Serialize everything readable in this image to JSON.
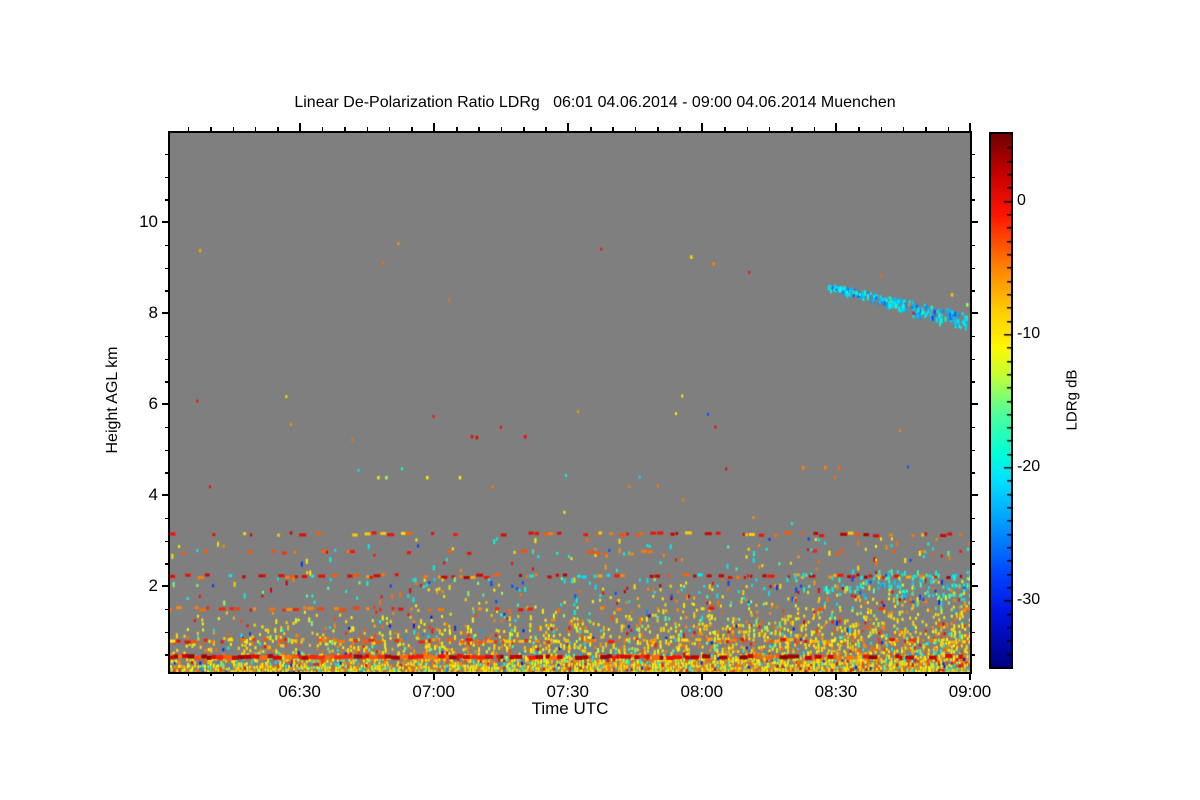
{
  "title": "Linear De-Polarization Ratio LDRg   06:01 04.06.2014 - 09:00 04.06.2014 Muenchen",
  "chart_data": {
    "type": "heatmap",
    "title": "Linear De-Polarization Ratio LDRg   06:01 04.06.2014 - 09:00 04.06.2014 Muenchen",
    "site": "Muenchen",
    "time_start": "06:01 04.06.2014",
    "time_end": "09:00 04.06.2014",
    "xlabel": "Time UTC",
    "ylabel": "Height AGL km",
    "colorbar_label": "LDRg dB",
    "background": "#7f7f7f",
    "x_range_minutes": [
      0,
      179
    ],
    "x_ticks": [
      {
        "label": "06:30",
        "minute": 29
      },
      {
        "label": "07:00",
        "minute": 59
      },
      {
        "label": "07:30",
        "minute": 89
      },
      {
        "label": "08:00",
        "minute": 119
      },
      {
        "label": "08:30",
        "minute": 149
      },
      {
        "label": "09:00",
        "minute": 179
      }
    ],
    "x_minor_step_min": 5,
    "y_range_km": [
      0.11,
      11.96
    ],
    "y_ticks": [
      2,
      4,
      6,
      8,
      10
    ],
    "y_minor_step_km": 0.5,
    "colorbar": {
      "max": 5,
      "min": -35,
      "ticks": [
        0,
        -10,
        -20,
        -30
      ],
      "minor_step_db": 1
    },
    "colormap_stops": [
      [
        5,
        "#730000"
      ],
      [
        2,
        "#c80000"
      ],
      [
        -1,
        "#ff1400"
      ],
      [
        -5,
        "#ff8200"
      ],
      [
        -8,
        "#ffc800"
      ],
      [
        -11,
        "#fff800"
      ],
      [
        -13,
        "#c8ff32"
      ],
      [
        -16,
        "#50ff9b"
      ],
      [
        -19,
        "#00ffd9"
      ],
      [
        -21,
        "#00e1ff"
      ],
      [
        -24,
        "#00a0ff"
      ],
      [
        -28,
        "#0046ff"
      ],
      [
        -31,
        "#0014e1"
      ],
      [
        -35,
        "#000082"
      ]
    ],
    "seed": 42,
    "features": [
      {
        "type": "region_surface",
        "h_top": 1.55,
        "base": 1.05,
        "falloff": 1.25,
        "t_floor": 0.45,
        "t_gain": 0.55,
        "top_growth": 0.45,
        "values": [
          [
            -10,
            0.4
          ],
          [
            -8,
            0.14
          ],
          [
            -5,
            0.16
          ],
          [
            -3,
            0.06
          ],
          [
            0,
            0.04
          ],
          [
            -13,
            0.08
          ],
          [
            -16,
            0.05
          ],
          [
            -20,
            0.05
          ],
          [
            -24,
            0.015
          ],
          [
            -30,
            0.015
          ]
        ]
      },
      {
        "type": "band",
        "h": 0.44,
        "thick": 4,
        "p_steps": [
          [
            0.4,
            0.96
          ],
          [
            0.62,
            0.5
          ],
          [
            1.01,
            0.35
          ]
        ],
        "values": [
          [
            1,
            0.35
          ],
          [
            3,
            0.3
          ],
          [
            -1,
            0.2
          ],
          [
            -4,
            0.15
          ]
        ]
      },
      {
        "type": "dash_row",
        "h": 0.83,
        "p_steps": [
          [
            0.45,
            0.5
          ],
          [
            1.01,
            0.22
          ]
        ],
        "values": [
          [
            -4,
            0.4
          ],
          [
            -1,
            0.3
          ],
          [
            -7,
            0.2
          ],
          [
            -10,
            0.1
          ]
        ]
      },
      {
        "type": "dash_row",
        "h": 1.53,
        "p_steps": [
          [
            0.35,
            0.38
          ],
          [
            1.01,
            0.12
          ]
        ],
        "values": [
          [
            -2,
            0.35
          ],
          [
            -5,
            0.35
          ],
          [
            0,
            0.2
          ],
          [
            -10,
            0.1
          ]
        ]
      },
      {
        "type": "dash_row",
        "h": 2.25,
        "p_steps": [
          [
            0.5,
            0.4
          ],
          [
            1.01,
            0.5
          ]
        ],
        "values": [
          [
            2,
            0.3
          ],
          [
            0,
            0.3
          ],
          [
            -4,
            0.2
          ],
          [
            -6,
            0.1
          ],
          [
            -20,
            0.1
          ]
        ]
      },
      {
        "type": "dash_row",
        "h": 2.77,
        "p_steps": [
          [
            1.01,
            0.1
          ]
        ],
        "values": [
          [
            -4,
            0.6
          ],
          [
            -1,
            0.4
          ]
        ]
      },
      {
        "type": "dash_row",
        "h": 3.17,
        "p_steps": [
          [
            0.45,
            0.18
          ],
          [
            1.01,
            0.26
          ]
        ],
        "values": [
          [
            0,
            0.35
          ],
          [
            -4,
            0.3
          ],
          [
            2,
            0.15
          ],
          [
            -9,
            0.2
          ]
        ]
      },
      {
        "type": "region_uniform",
        "h_lo": 1.6,
        "h_hi": 2.18,
        "p0": 0.02,
        "p1": 0.16,
        "values": [
          [
            -20,
            0.3
          ],
          [
            -10,
            0.2
          ],
          [
            -15,
            0.15
          ],
          [
            -5,
            0.12
          ],
          [
            -28,
            0.1
          ],
          [
            0,
            0.08
          ],
          [
            2,
            0.05
          ]
        ]
      },
      {
        "type": "region_uniform",
        "h_lo": 1.78,
        "h_hi": 2.35,
        "p0": 0.0,
        "p1": 0.3,
        "t_on": 0.74,
        "values": [
          [
            -20,
            0.45
          ],
          [
            -17,
            0.2
          ],
          [
            -22,
            0.2
          ],
          [
            -12,
            0.1
          ],
          [
            -28,
            0.05
          ]
        ]
      },
      {
        "type": "region_uniform",
        "h_lo": 2.3,
        "h_hi": 3.05,
        "p0": 0.008,
        "p1": 0.05,
        "values": [
          [
            -20,
            0.25
          ],
          [
            -10,
            0.25
          ],
          [
            -5,
            0.2
          ],
          [
            -16,
            0.12
          ],
          [
            0,
            0.1
          ],
          [
            -28,
            0.08
          ]
        ]
      },
      {
        "type": "diag_streak",
        "t0": 0.822,
        "h0": 8.62,
        "t1": 0.998,
        "h1": 7.82,
        "count": 240,
        "values": [
          [
            -20,
            0.3
          ],
          [
            -22,
            0.3
          ],
          [
            -24,
            0.2
          ],
          [
            -18,
            0.1
          ],
          [
            -27,
            0.1
          ]
        ]
      },
      {
        "type": "dots",
        "list": [
          [
            0.036,
            9.41,
            -6
          ],
          [
            0.65,
            9.27,
            -9
          ],
          [
            0.678,
            9.12,
            -5
          ],
          [
            0.376,
            5.32,
            0
          ],
          [
            0.382,
            5.3,
            1
          ],
          [
            0.4425,
            5.32,
            0
          ],
          [
            0.259,
            4.42,
            -10
          ],
          [
            0.269,
            4.42,
            -14
          ],
          [
            0.32,
            4.42,
            -10
          ],
          [
            0.361,
            4.42,
            -10
          ],
          [
            0.79,
            4.64,
            -5
          ],
          [
            0.8175,
            4.64,
            -5
          ],
          [
            0.835,
            4.62,
            -4
          ],
          [
            0.9225,
            8.22,
            -5
          ],
          [
            0.976,
            8.44,
            -8
          ],
          [
            0.995,
            8.22,
            -14
          ]
        ]
      },
      {
        "type": "random_specks",
        "count": 26,
        "h_lo": 3.3,
        "h_hi": 6.2,
        "values": [
          [
            -5,
            0.3
          ],
          [
            -10,
            0.25
          ],
          [
            -20,
            0.2
          ],
          [
            0,
            0.15
          ],
          [
            -28,
            0.1
          ]
        ]
      },
      {
        "type": "random_specks",
        "count": 8,
        "h_lo": 6.2,
        "h_hi": 9.6,
        "values": [
          [
            -5,
            0.3
          ],
          [
            -10,
            0.25
          ],
          [
            -20,
            0.2
          ],
          [
            0,
            0.15
          ],
          [
            -28,
            0.1
          ]
        ]
      }
    ]
  }
}
